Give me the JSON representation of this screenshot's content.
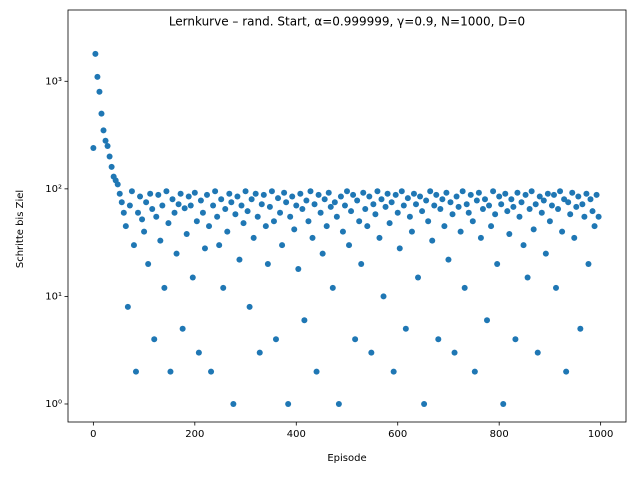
{
  "chart_data": {
    "type": "scatter",
    "title": "Lernkurve – rand. Start, α=0.999999, γ=0.9, N=1000, D=0",
    "x_label": "Episode",
    "y_label": "Schritte bis Ziel",
    "color": "#1f77b4",
    "ylog": true,
    "xlim": [
      -50,
      1050
    ],
    "ylim": [
      0.68,
      4600
    ],
    "xticks": [
      0,
      200,
      400,
      600,
      800,
      1000
    ],
    "yticks": [
      {
        "value": 1,
        "label": "10⁰"
      },
      {
        "value": 10,
        "label": "10¹"
      },
      {
        "value": 100,
        "label": "10²"
      },
      {
        "value": 1000,
        "label": "10³"
      }
    ],
    "x": [
      0,
      4,
      8,
      12,
      16,
      20,
      24,
      28,
      32,
      36,
      40,
      44,
      48,
      52,
      56,
      60,
      64,
      68,
      72,
      76,
      80,
      84,
      88,
      92,
      96,
      100,
      104,
      108,
      112,
      116,
      120,
      124,
      128,
      132,
      136,
      140,
      144,
      148,
      152,
      156,
      160,
      164,
      168,
      172,
      176,
      180,
      184,
      188,
      192,
      196,
      200,
      204,
      208,
      212,
      216,
      220,
      224,
      228,
      232,
      236,
      240,
      244,
      248,
      252,
      256,
      260,
      264,
      268,
      272,
      276,
      280,
      284,
      288,
      292,
      296,
      300,
      304,
      308,
      312,
      316,
      320,
      324,
      328,
      332,
      336,
      340,
      344,
      348,
      352,
      356,
      360,
      364,
      368,
      372,
      376,
      380,
      384,
      388,
      392,
      396,
      400,
      404,
      408,
      412,
      416,
      420,
      424,
      428,
      432,
      436,
      440,
      444,
      448,
      452,
      456,
      460,
      464,
      468,
      472,
      476,
      480,
      484,
      488,
      492,
      496,
      500,
      504,
      508,
      512,
      516,
      520,
      524,
      528,
      532,
      536,
      540,
      544,
      548,
      552,
      556,
      560,
      564,
      568,
      572,
      576,
      580,
      584,
      588,
      592,
      596,
      600,
      604,
      608,
      612,
      616,
      620,
      624,
      628,
      632,
      636,
      640,
      644,
      648,
      652,
      656,
      660,
      664,
      668,
      672,
      676,
      680,
      684,
      688,
      692,
      696,
      700,
      704,
      708,
      712,
      716,
      720,
      724,
      728,
      732,
      736,
      740,
      744,
      748,
      752,
      756,
      760,
      764,
      768,
      772,
      776,
      780,
      784,
      788,
      792,
      796,
      800,
      804,
      808,
      812,
      816,
      820,
      824,
      828,
      832,
      836,
      840,
      844,
      848,
      852,
      856,
      860,
      864,
      868,
      872,
      876,
      880,
      884,
      888,
      892,
      896,
      900,
      904,
      908,
      912,
      916,
      920,
      924,
      928,
      932,
      936,
      940,
      944,
      948,
      952,
      956,
      960,
      964,
      968,
      972,
      976,
      980,
      984,
      988,
      992,
      996
    ],
    "values": [
      240,
      1800,
      1100,
      800,
      500,
      350,
      280,
      250,
      200,
      160,
      130,
      120,
      110,
      90,
      75,
      60,
      45,
      8,
      70,
      95,
      30,
      2,
      60,
      85,
      52,
      40,
      75,
      20,
      90,
      65,
      4,
      55,
      88,
      33,
      70,
      12,
      95,
      48,
      2,
      80,
      60,
      25,
      72,
      90,
      5,
      66,
      38,
      85,
      70,
      15,
      92,
      50,
      3,
      78,
      60,
      28,
      88,
      45,
      2,
      70,
      95,
      55,
      30,
      80,
      12,
      65,
      40,
      90,
      75,
      1,
      58,
      85,
      22,
      70,
      48,
      95,
      62,
      8,
      80,
      35,
      90,
      55,
      3,
      72,
      88,
      45,
      20,
      68,
      95,
      50,
      4,
      82,
      60,
      30,
      92,
      75,
      1,
      55,
      85,
      42,
      70,
      18,
      90,
      65,
      6,
      78,
      50,
      95,
      35,
      72,
      2,
      88,
      60,
      25,
      80,
      45,
      92,
      68,
      12,
      75,
      55,
      1,
      85,
      40,
      70,
      95,
      30,
      62,
      88,
      4,
      78,
      50,
      20,
      92,
      65,
      45,
      85,
      3,
      72,
      58,
      95,
      35,
      80,
      10,
      68,
      90,
      48,
      75,
      2,
      88,
      60,
      28,
      95,
      70,
      5,
      82,
      55,
      40,
      90,
      72,
      15,
      85,
      62,
      1,
      78,
      50,
      95,
      33,
      70,
      88,
      4,
      65,
      80,
      45,
      92,
      22,
      75,
      58,
      3,
      85,
      68,
      40,
      95,
      12,
      72,
      60,
      88,
      50,
      2,
      78,
      92,
      35,
      65,
      80,
      6,
      70,
      45,
      95,
      58,
      20,
      85,
      72,
      1,
      90,
      62,
      38,
      80,
      68,
      4,
      92,
      55,
      75,
      30,
      88,
      15,
      65,
      95,
      42,
      72,
      3,
      85,
      60,
      78,
      25,
      90,
      50,
      70,
      88,
      12,
      65,
      95,
      40,
      80,
      2,
      75,
      58,
      92,
      35,
      68,
      85,
      5,
      72,
      55,
      90,
      20,
      80,
      62,
      45,
      88,
      55
    ]
  }
}
